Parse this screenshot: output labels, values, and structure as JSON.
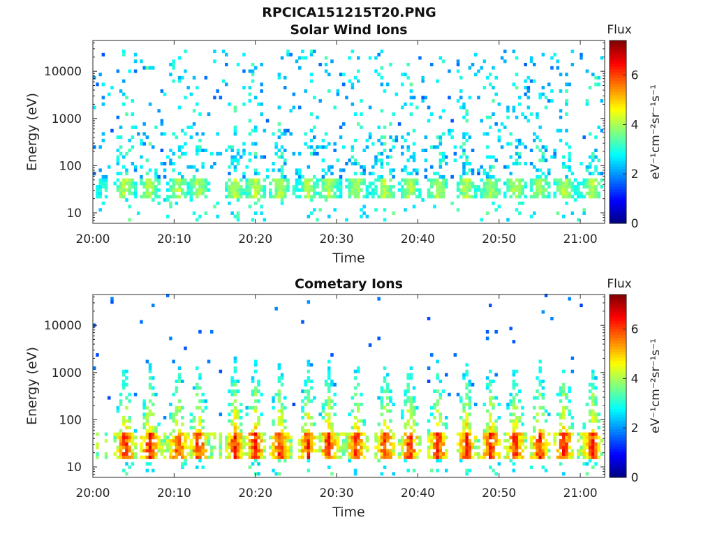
{
  "figure": {
    "filename": "RPCICA151215T20.PNG"
  },
  "chart_data": [
    {
      "type": "heatmap",
      "title": "Solar Wind Ions",
      "xlabel": "Time",
      "ylabel": "Energy (eV)",
      "x_range": [
        "20:00",
        "21:03"
      ],
      "x_ticks": [
        "20:00",
        "20:10",
        "20:20",
        "20:30",
        "20:40",
        "20:50",
        "21:00"
      ],
      "y_scale": "log",
      "y_range": [
        6,
        45000
      ],
      "y_ticks": [
        "10",
        "100",
        "1000",
        "10000"
      ],
      "colorbar": {
        "title": "Flux",
        "label": "eV⁻¹cm⁻²sr⁻¹s⁻¹",
        "range": [
          0,
          7.4
        ],
        "ticks": [
          "0",
          "2",
          "4",
          "6"
        ]
      },
      "features": {
        "background_scatter_log_flux": 1.5,
        "low_energy_band_eV": [
          20,
          45
        ],
        "low_energy_flux_peak": 4.5,
        "burst_times_min": [
          4,
          7,
          10.5,
          13,
          17.5,
          20,
          23,
          26.5,
          29,
          32.5,
          36,
          39,
          42.5,
          46,
          49,
          52,
          55,
          58,
          61.5
        ]
      }
    },
    {
      "type": "heatmap",
      "title": "Cometary Ions",
      "xlabel": "Time",
      "ylabel": "Energy (eV)",
      "x_range": [
        "20:00",
        "21:03"
      ],
      "x_ticks": [
        "20:00",
        "20:10",
        "20:20",
        "20:30",
        "20:40",
        "20:50",
        "21:00"
      ],
      "y_scale": "log",
      "y_range": [
        6,
        45000
      ],
      "y_ticks": [
        "10",
        "100",
        "1000",
        "10000"
      ],
      "colorbar": {
        "title": "Flux",
        "label": "eV⁻¹cm⁻²sr⁻¹s⁻¹",
        "range": [
          0,
          7.4
        ],
        "ticks": [
          "0",
          "2",
          "4",
          "6"
        ]
      },
      "features": {
        "low_energy_band_eV": [
          15,
          45
        ],
        "low_energy_flux_peak": 6.8,
        "burst_times_min": [
          4,
          7,
          10.5,
          13,
          17.5,
          20,
          23,
          26.5,
          29,
          32.5,
          36,
          39,
          42.5,
          46,
          49,
          52,
          55,
          58,
          61.5
        ],
        "burst_max_energy_eV": 2000
      }
    }
  ]
}
